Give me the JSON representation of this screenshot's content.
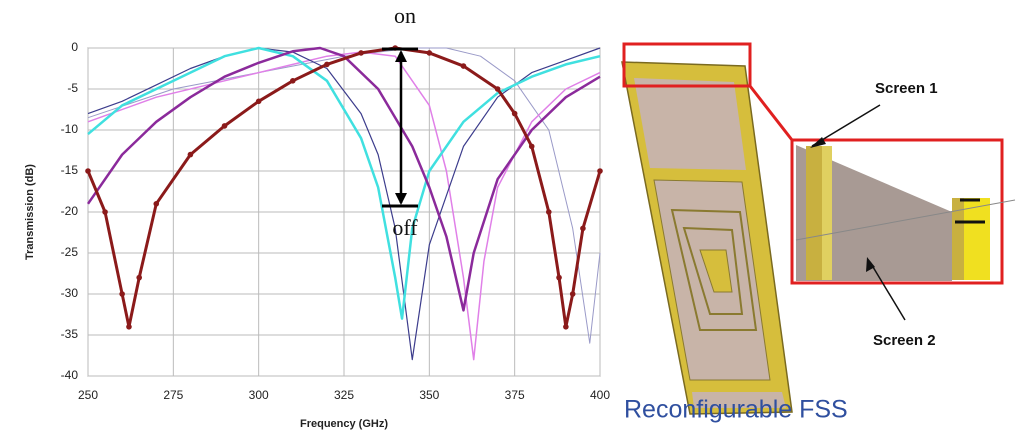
{
  "chart_data": {
    "type": "line",
    "x_label": "Frequency (GHz)",
    "y_label": "Transmission (dB)",
    "xlim": [
      250,
      400
    ],
    "xticks": [
      250,
      275,
      300,
      325,
      350,
      375,
      400
    ],
    "ylim": [
      -40,
      0
    ],
    "yticks": [
      0,
      -5,
      -10,
      -15,
      -20,
      -25,
      -30,
      -35,
      -40
    ],
    "grid": true,
    "annotations": [
      "on",
      "off"
    ],
    "series": [
      {
        "color": "#9a9ac8",
        "width": 1,
        "markers": false,
        "x": [
          250,
          275,
          300,
          325,
          345,
          355,
          365,
          375,
          385,
          392,
          397,
          400
        ],
        "values": [
          -8.5,
          -5,
          -3,
          -1,
          0,
          0,
          -1,
          -4,
          -10,
          -22,
          -36,
          -25
        ]
      },
      {
        "color": "#e080e8",
        "width": 1.5,
        "markers": false,
        "x": [
          250,
          270,
          290,
          310,
          320,
          330,
          340,
          350,
          355,
          360,
          363,
          366,
          370,
          380,
          390,
          400
        ],
        "values": [
          -9,
          -6,
          -4,
          -2,
          -1,
          -0.5,
          -1,
          -7,
          -15,
          -28,
          -38,
          -26,
          -17,
          -9,
          -5,
          -3
        ]
      },
      {
        "color": "#3c3c8c",
        "width": 1.2,
        "markers": false,
        "x": [
          250,
          260,
          270,
          280,
          290,
          300,
          310,
          320,
          330,
          335,
          340,
          345,
          350,
          360,
          370,
          380,
          390,
          400
        ],
        "values": [
          -8,
          -6.5,
          -4.5,
          -2.5,
          -1,
          0,
          -0.5,
          -2.5,
          -8,
          -13,
          -22,
          -38,
          -24,
          -12,
          -6,
          -3,
          -1.5,
          0
        ]
      },
      {
        "color": "#40e0e0",
        "width": 2.5,
        "markers": false,
        "x": [
          250,
          260,
          270,
          280,
          290,
          300,
          310,
          320,
          330,
          335,
          340,
          342,
          345,
          350,
          360,
          370,
          380,
          390,
          400
        ],
        "values": [
          -10.5,
          -7,
          -5,
          -3,
          -1,
          0,
          -1,
          -4,
          -11,
          -17,
          -28,
          -33,
          -22,
          -15,
          -9,
          -5.5,
          -3.5,
          -2,
          -1
        ]
      },
      {
        "color": "#8b2a9b",
        "width": 2.5,
        "markers": false,
        "x": [
          250,
          260,
          270,
          280,
          290,
          300,
          310,
          318,
          325,
          335,
          345,
          350,
          355,
          360,
          363,
          370,
          380,
          390,
          400
        ],
        "values": [
          -19,
          -13,
          -9,
          -6,
          -3.5,
          -1.8,
          -0.4,
          0,
          -1,
          -5,
          -12,
          -17,
          -23,
          -32,
          -25,
          -16,
          -10,
          -6,
          -3.5
        ]
      },
      {
        "color": "#8b1a1a",
        "width": 3,
        "markers": true,
        "x": [
          250,
          255,
          260,
          262,
          265,
          270,
          280,
          290,
          300,
          310,
          320,
          330,
          340,
          350,
          360,
          370,
          375,
          380,
          385,
          388,
          390,
          392,
          395,
          400
        ],
        "values": [
          -15,
          -20,
          -30,
          -34,
          -28,
          -19,
          -13,
          -9.5,
          -6.5,
          -4,
          -2,
          -0.6,
          0,
          -0.6,
          -2.2,
          -5,
          -8,
          -12,
          -20,
          -28,
          -34,
          -30,
          -22,
          -15
        ]
      }
    ]
  },
  "diagram": {
    "screen_1": "Screen 1",
    "screen_2": "Screen 2"
  },
  "caption": "Reconfigurable FSS"
}
